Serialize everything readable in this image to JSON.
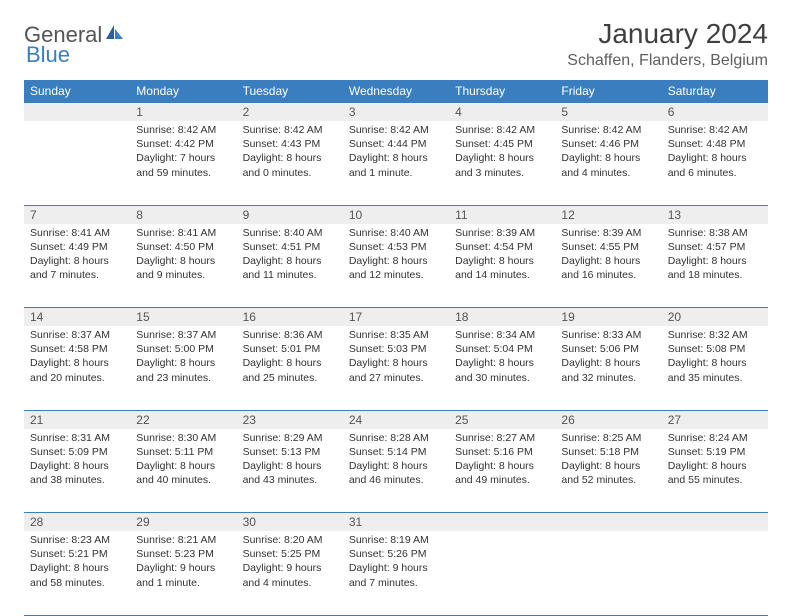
{
  "logo": {
    "word1": "General",
    "word2": "Blue"
  },
  "header": {
    "month_title": "January 2024",
    "location": "Schaffen, Flanders, Belgium"
  },
  "colors": {
    "brand_blue": "#3a7ebf",
    "header_bg": "#3a7ebf",
    "header_text": "#ffffff",
    "daynum_bg": "#eeeeee",
    "body_text": "#333333"
  },
  "days_of_week": [
    "Sunday",
    "Monday",
    "Tuesday",
    "Wednesday",
    "Thursday",
    "Friday",
    "Saturday"
  ],
  "weeks": [
    [
      null,
      {
        "n": "1",
        "sunrise": "Sunrise: 8:42 AM",
        "sunset": "Sunset: 4:42 PM",
        "day1": "Daylight: 7 hours",
        "day2": "and 59 minutes."
      },
      {
        "n": "2",
        "sunrise": "Sunrise: 8:42 AM",
        "sunset": "Sunset: 4:43 PM",
        "day1": "Daylight: 8 hours",
        "day2": "and 0 minutes."
      },
      {
        "n": "3",
        "sunrise": "Sunrise: 8:42 AM",
        "sunset": "Sunset: 4:44 PM",
        "day1": "Daylight: 8 hours",
        "day2": "and 1 minute."
      },
      {
        "n": "4",
        "sunrise": "Sunrise: 8:42 AM",
        "sunset": "Sunset: 4:45 PM",
        "day1": "Daylight: 8 hours",
        "day2": "and 3 minutes."
      },
      {
        "n": "5",
        "sunrise": "Sunrise: 8:42 AM",
        "sunset": "Sunset: 4:46 PM",
        "day1": "Daylight: 8 hours",
        "day2": "and 4 minutes."
      },
      {
        "n": "6",
        "sunrise": "Sunrise: 8:42 AM",
        "sunset": "Sunset: 4:48 PM",
        "day1": "Daylight: 8 hours",
        "day2": "and 6 minutes."
      }
    ],
    [
      {
        "n": "7",
        "sunrise": "Sunrise: 8:41 AM",
        "sunset": "Sunset: 4:49 PM",
        "day1": "Daylight: 8 hours",
        "day2": "and 7 minutes."
      },
      {
        "n": "8",
        "sunrise": "Sunrise: 8:41 AM",
        "sunset": "Sunset: 4:50 PM",
        "day1": "Daylight: 8 hours",
        "day2": "and 9 minutes."
      },
      {
        "n": "9",
        "sunrise": "Sunrise: 8:40 AM",
        "sunset": "Sunset: 4:51 PM",
        "day1": "Daylight: 8 hours",
        "day2": "and 11 minutes."
      },
      {
        "n": "10",
        "sunrise": "Sunrise: 8:40 AM",
        "sunset": "Sunset: 4:53 PM",
        "day1": "Daylight: 8 hours",
        "day2": "and 12 minutes."
      },
      {
        "n": "11",
        "sunrise": "Sunrise: 8:39 AM",
        "sunset": "Sunset: 4:54 PM",
        "day1": "Daylight: 8 hours",
        "day2": "and 14 minutes."
      },
      {
        "n": "12",
        "sunrise": "Sunrise: 8:39 AM",
        "sunset": "Sunset: 4:55 PM",
        "day1": "Daylight: 8 hours",
        "day2": "and 16 minutes."
      },
      {
        "n": "13",
        "sunrise": "Sunrise: 8:38 AM",
        "sunset": "Sunset: 4:57 PM",
        "day1": "Daylight: 8 hours",
        "day2": "and 18 minutes."
      }
    ],
    [
      {
        "n": "14",
        "sunrise": "Sunrise: 8:37 AM",
        "sunset": "Sunset: 4:58 PM",
        "day1": "Daylight: 8 hours",
        "day2": "and 20 minutes."
      },
      {
        "n": "15",
        "sunrise": "Sunrise: 8:37 AM",
        "sunset": "Sunset: 5:00 PM",
        "day1": "Daylight: 8 hours",
        "day2": "and 23 minutes."
      },
      {
        "n": "16",
        "sunrise": "Sunrise: 8:36 AM",
        "sunset": "Sunset: 5:01 PM",
        "day1": "Daylight: 8 hours",
        "day2": "and 25 minutes."
      },
      {
        "n": "17",
        "sunrise": "Sunrise: 8:35 AM",
        "sunset": "Sunset: 5:03 PM",
        "day1": "Daylight: 8 hours",
        "day2": "and 27 minutes."
      },
      {
        "n": "18",
        "sunrise": "Sunrise: 8:34 AM",
        "sunset": "Sunset: 5:04 PM",
        "day1": "Daylight: 8 hours",
        "day2": "and 30 minutes."
      },
      {
        "n": "19",
        "sunrise": "Sunrise: 8:33 AM",
        "sunset": "Sunset: 5:06 PM",
        "day1": "Daylight: 8 hours",
        "day2": "and 32 minutes."
      },
      {
        "n": "20",
        "sunrise": "Sunrise: 8:32 AM",
        "sunset": "Sunset: 5:08 PM",
        "day1": "Daylight: 8 hours",
        "day2": "and 35 minutes."
      }
    ],
    [
      {
        "n": "21",
        "sunrise": "Sunrise: 8:31 AM",
        "sunset": "Sunset: 5:09 PM",
        "day1": "Daylight: 8 hours",
        "day2": "and 38 minutes."
      },
      {
        "n": "22",
        "sunrise": "Sunrise: 8:30 AM",
        "sunset": "Sunset: 5:11 PM",
        "day1": "Daylight: 8 hours",
        "day2": "and 40 minutes."
      },
      {
        "n": "23",
        "sunrise": "Sunrise: 8:29 AM",
        "sunset": "Sunset: 5:13 PM",
        "day1": "Daylight: 8 hours",
        "day2": "and 43 minutes."
      },
      {
        "n": "24",
        "sunrise": "Sunrise: 8:28 AM",
        "sunset": "Sunset: 5:14 PM",
        "day1": "Daylight: 8 hours",
        "day2": "and 46 minutes."
      },
      {
        "n": "25",
        "sunrise": "Sunrise: 8:27 AM",
        "sunset": "Sunset: 5:16 PM",
        "day1": "Daylight: 8 hours",
        "day2": "and 49 minutes."
      },
      {
        "n": "26",
        "sunrise": "Sunrise: 8:25 AM",
        "sunset": "Sunset: 5:18 PM",
        "day1": "Daylight: 8 hours",
        "day2": "and 52 minutes."
      },
      {
        "n": "27",
        "sunrise": "Sunrise: 8:24 AM",
        "sunset": "Sunset: 5:19 PM",
        "day1": "Daylight: 8 hours",
        "day2": "and 55 minutes."
      }
    ],
    [
      {
        "n": "28",
        "sunrise": "Sunrise: 8:23 AM",
        "sunset": "Sunset: 5:21 PM",
        "day1": "Daylight: 8 hours",
        "day2": "and 58 minutes."
      },
      {
        "n": "29",
        "sunrise": "Sunrise: 8:21 AM",
        "sunset": "Sunset: 5:23 PM",
        "day1": "Daylight: 9 hours",
        "day2": "and 1 minute."
      },
      {
        "n": "30",
        "sunrise": "Sunrise: 8:20 AM",
        "sunset": "Sunset: 5:25 PM",
        "day1": "Daylight: 9 hours",
        "day2": "and 4 minutes."
      },
      {
        "n": "31",
        "sunrise": "Sunrise: 8:19 AM",
        "sunset": "Sunset: 5:26 PM",
        "day1": "Daylight: 9 hours",
        "day2": "and 7 minutes."
      },
      null,
      null,
      null
    ]
  ]
}
